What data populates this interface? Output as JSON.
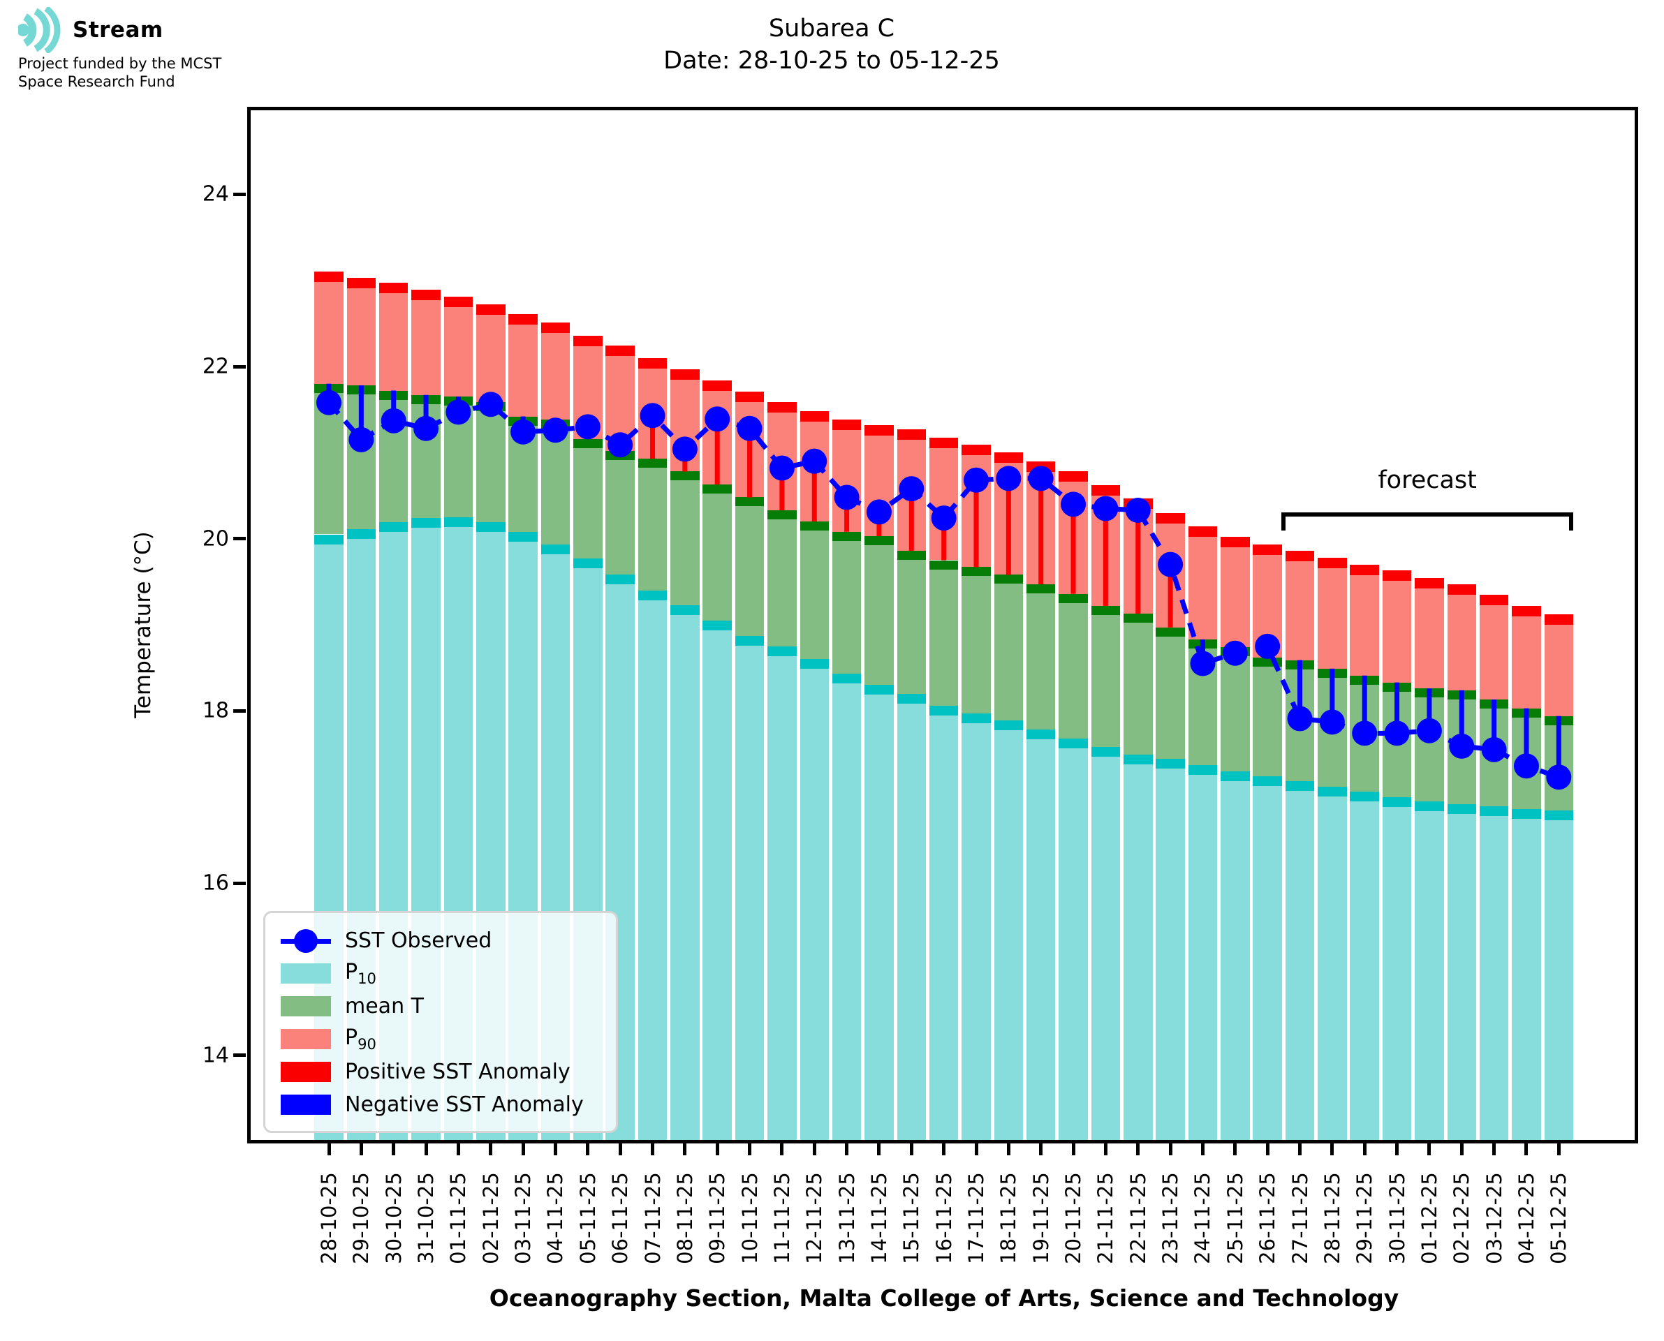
{
  "header": {
    "logo_text": "Stream",
    "funding_line1": "Project funded by the MCST",
    "funding_line2": "Space Research Fund"
  },
  "title": {
    "line1": "Subarea C",
    "line2": "Date: 28-10-25 to 05-12-25"
  },
  "chart_data": {
    "type": "bar",
    "subtype": "stacked-percentile-bars-with-observed-sst-line",
    "title": "Subarea C",
    "subtitle": "Date: 28-10-25 to 05-12-25",
    "xlabel": "Oceanography Section, Malta College of Arts, Science and Technology",
    "ylabel": "Temperature (°C)",
    "ylim": [
      13.0,
      25.0
    ],
    "yticks": [
      14,
      16,
      18,
      20,
      22,
      24
    ],
    "grid": false,
    "legend_position": "lower-left",
    "dates": [
      "28-10-25",
      "29-10-25",
      "30-10-25",
      "31-10-25",
      "01-11-25",
      "02-11-25",
      "03-11-25",
      "04-11-25",
      "05-11-25",
      "06-11-25",
      "07-11-25",
      "08-11-25",
      "09-11-25",
      "10-11-25",
      "11-11-25",
      "12-11-25",
      "13-11-25",
      "14-11-25",
      "15-11-25",
      "16-11-25",
      "17-11-25",
      "18-11-25",
      "19-11-25",
      "20-11-25",
      "21-11-25",
      "22-11-25",
      "23-11-25",
      "24-11-25",
      "25-11-25",
      "26-11-25",
      "27-11-25",
      "28-11-25",
      "29-11-25",
      "30-11-25",
      "01-12-25",
      "02-12-25",
      "03-12-25",
      "04-12-25",
      "05-12-25"
    ],
    "series": [
      {
        "name": "P10",
        "values": [
          20.05,
          20.11,
          20.19,
          20.24,
          20.25,
          20.19,
          20.08,
          19.93,
          19.77,
          19.58,
          19.4,
          19.23,
          19.05,
          18.87,
          18.75,
          18.6,
          18.43,
          18.3,
          18.2,
          18.06,
          17.97,
          17.89,
          17.78,
          17.68,
          17.58,
          17.49,
          17.44,
          17.37,
          17.3,
          17.24,
          17.18,
          17.12,
          17.06,
          17.0,
          16.95,
          16.92,
          16.89,
          16.86,
          16.84
        ]
      },
      {
        "name": "mean T",
        "values": [
          21.8,
          21.78,
          21.72,
          21.67,
          21.65,
          21.59,
          21.42,
          21.38,
          21.16,
          21.02,
          20.93,
          20.78,
          20.63,
          20.48,
          20.33,
          20.2,
          20.08,
          20.03,
          19.86,
          19.75,
          19.67,
          19.58,
          19.47,
          19.36,
          19.22,
          19.13,
          18.97,
          18.83,
          18.74,
          18.62,
          18.59,
          18.49,
          18.41,
          18.33,
          18.26,
          18.24,
          18.13,
          18.03,
          17.94
        ]
      },
      {
        "name": "P90",
        "values": [
          23.1,
          23.03,
          22.97,
          22.89,
          22.81,
          22.72,
          22.61,
          22.51,
          22.36,
          22.24,
          22.1,
          21.97,
          21.84,
          21.71,
          21.59,
          21.48,
          21.38,
          21.32,
          21.27,
          21.17,
          21.09,
          21.0,
          20.9,
          20.78,
          20.62,
          20.47,
          20.3,
          20.14,
          20.02,
          19.93,
          19.86,
          19.78,
          19.7,
          19.63,
          19.54,
          19.47,
          19.35,
          19.22,
          19.12
        ]
      },
      {
        "name": "SST Observed",
        "values": [
          21.58,
          21.15,
          21.37,
          21.28,
          21.47,
          21.56,
          21.24,
          21.26,
          21.3,
          21.09,
          21.43,
          21.04,
          21.39,
          21.28,
          20.82,
          20.9,
          20.48,
          20.31,
          20.58,
          20.24,
          20.68,
          20.7,
          20.7,
          20.4,
          20.35,
          20.33,
          19.7,
          18.55,
          18.67,
          18.75,
          17.91,
          17.87,
          17.74,
          17.74,
          17.77,
          17.59,
          17.55,
          17.36,
          17.23
        ]
      }
    ],
    "forecast": {
      "label": "forecast",
      "start_date": "27-11-25",
      "end_date": "05-12-25",
      "start_index": 30
    },
    "legend": {
      "entries": [
        {
          "type": "marker",
          "label": "SST Observed"
        },
        {
          "type": "patch",
          "color_key": "p10_fill",
          "label": "P",
          "sub": "10"
        },
        {
          "type": "patch",
          "color_key": "mean_fill",
          "label": "mean T"
        },
        {
          "type": "patch",
          "color_key": "p90_fill",
          "label": "P",
          "sub": "90"
        },
        {
          "type": "patch",
          "color_key": "pos_anomaly",
          "label": "Positive SST Anomaly"
        },
        {
          "type": "patch",
          "color_key": "neg_anomaly",
          "label": "Negative SST Anomaly"
        }
      ]
    },
    "colors": {
      "p10_fill": "#87dcdc",
      "p10_cap": "#00c2c2",
      "mean_fill": "#83bd83",
      "mean_cap": "#067d06",
      "p90_fill": "#fa827b",
      "p90_cap": "#fb0000",
      "pos_anomaly": "#fb0000",
      "neg_anomaly": "#0000ff",
      "observed": "#0000ff",
      "logo_teal": "#76d8d4"
    }
  }
}
